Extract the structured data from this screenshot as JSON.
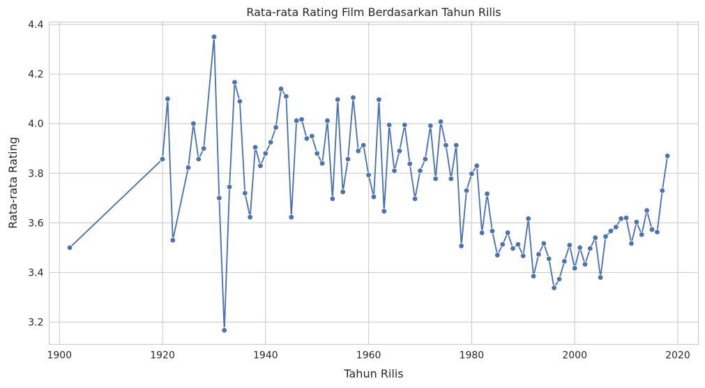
{
  "colors": {
    "series": "#4c72b0",
    "grid": "#cccccc",
    "text": "#262626",
    "background": "#ffffff"
  },
  "chart_data": {
    "type": "line",
    "title": "Rata-rata Rating Film Berdasarkan Tahun Rilis",
    "xlabel": "Tahun Rilis",
    "ylabel": "Rata-rata Rating",
    "xlim": [
      1898,
      2024
    ],
    "ylim": [
      3.11,
      4.41
    ],
    "xticks": [
      1900,
      1920,
      1940,
      1960,
      1980,
      2000,
      2020
    ],
    "yticks": [
      3.2,
      3.4,
      3.6,
      3.8,
      4.0,
      4.2,
      4.4
    ],
    "ytick_labels": [
      "3.2",
      "3.4",
      "3.6",
      "3.8",
      "4.0",
      "4.2",
      "4.4"
    ],
    "grid": true,
    "marker": "circle",
    "x": [
      1902,
      1920,
      1921,
      1922,
      1925,
      1926,
      1927,
      1928,
      1930,
      1931,
      1932,
      1933,
      1934,
      1935,
      1936,
      1937,
      1938,
      1939,
      1940,
      1941,
      1942,
      1943,
      1944,
      1945,
      1946,
      1947,
      1948,
      1949,
      1950,
      1951,
      1952,
      1953,
      1954,
      1955,
      1956,
      1957,
      1958,
      1959,
      1960,
      1961,
      1962,
      1963,
      1964,
      1965,
      1966,
      1967,
      1968,
      1969,
      1970,
      1971,
      1972,
      1973,
      1974,
      1975,
      1976,
      1977,
      1978,
      1979,
      1980,
      1981,
      1982,
      1983,
      1984,
      1985,
      1986,
      1987,
      1988,
      1989,
      1990,
      1991,
      1992,
      1993,
      1994,
      1995,
      1996,
      1997,
      1998,
      1999,
      2000,
      2001,
      2002,
      2003,
      2004,
      2005,
      2006,
      2007,
      2008,
      2009,
      2010,
      2011,
      2012,
      2013,
      2014,
      2015,
      2016,
      2017,
      2018
    ],
    "y": [
      3.5,
      3.857,
      4.1,
      3.53,
      3.823,
      4.0,
      3.857,
      3.9,
      4.35,
      3.7,
      3.167,
      3.745,
      4.167,
      4.09,
      3.72,
      3.623,
      3.905,
      3.83,
      3.88,
      3.925,
      3.985,
      4.14,
      4.11,
      3.623,
      4.012,
      4.017,
      3.94,
      3.95,
      3.88,
      3.84,
      4.012,
      3.697,
      4.097,
      3.725,
      3.857,
      4.105,
      3.89,
      3.913,
      3.793,
      3.705,
      4.097,
      3.647,
      3.995,
      3.81,
      3.89,
      3.995,
      3.838,
      3.697,
      3.81,
      3.857,
      3.992,
      3.778,
      4.008,
      3.913,
      3.778,
      3.913,
      3.507,
      3.73,
      3.798,
      3.83,
      3.56,
      3.717,
      3.567,
      3.47,
      3.513,
      3.56,
      3.497,
      3.513,
      3.467,
      3.617,
      3.385,
      3.473,
      3.517,
      3.455,
      3.338,
      3.373,
      3.445,
      3.51,
      3.417,
      3.5,
      3.433,
      3.497,
      3.54,
      3.38,
      3.545,
      3.567,
      3.583,
      3.617,
      3.62,
      3.517,
      3.603,
      3.553,
      3.65,
      3.573,
      3.563,
      3.73,
      3.87
    ]
  }
}
